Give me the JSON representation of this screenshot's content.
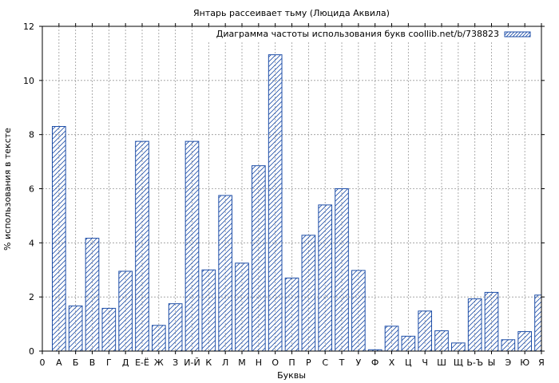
{
  "chart_data": {
    "type": "bar",
    "title": "Янтарь рассеивает тьму (Люцида Аквила)",
    "xlabel": "Буквы",
    "ylabel": "% использования в тексте",
    "ylim": [
      0,
      12
    ],
    "yticks": [
      "0",
      "2",
      "4",
      "6",
      "8",
      "10",
      "12"
    ],
    "x_start_label": "0",
    "grid": true,
    "legend_position": "top-right",
    "colors": {
      "bar_stroke": "#1f4fa8",
      "hatch": "#1f4fa8",
      "grid": "#999999",
      "axis": "#000000"
    },
    "categories": [
      "А",
      "Б",
      "В",
      "Г",
      "Д",
      "Е-Ё",
      "Ж",
      "З",
      "И-Й",
      "К",
      "Л",
      "М",
      "Н",
      "О",
      "П",
      "Р",
      "С",
      "Т",
      "У",
      "Ф",
      "Х",
      "Ц",
      "Ч",
      "Ш",
      "Щ",
      "Ь-Ъ",
      "Ы",
      "Э",
      "Ю",
      "Я"
    ],
    "series": [
      {
        "name": "Диаграмма частоты использования букв coollib.net/b/738823",
        "values": [
          8.3,
          1.67,
          4.17,
          1.58,
          2.95,
          7.75,
          0.95,
          1.75,
          7.75,
          3.0,
          5.75,
          3.25,
          6.85,
          10.95,
          2.7,
          4.28,
          5.4,
          6.0,
          2.98,
          0.05,
          0.92,
          0.55,
          1.48,
          0.75,
          0.3,
          1.93,
          2.17,
          0.42,
          0.72,
          2.07
        ]
      }
    ]
  }
}
